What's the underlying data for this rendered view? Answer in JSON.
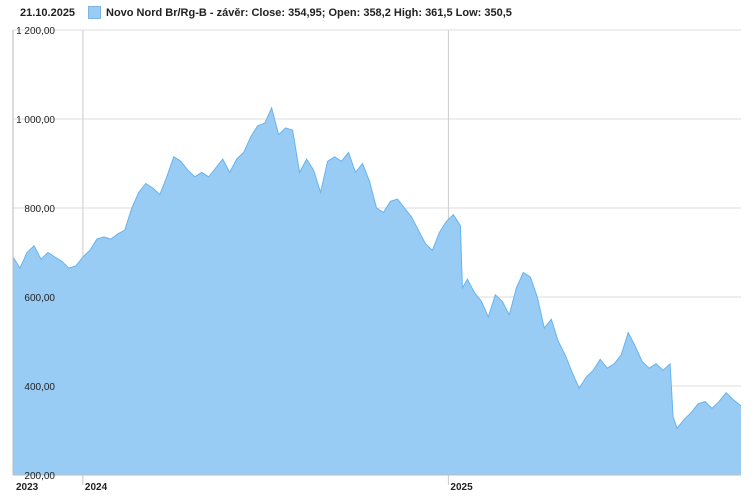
{
  "header": {
    "date": "21.10.2025",
    "legend": "Novo Nord Br/Rg-B - závěr: Close: 354,95; Open: 358,2 High: 361,5 Low: 350,5"
  },
  "colors": {
    "area_fill": "#99ccf5",
    "area_line": "#66b3ee",
    "grid": "#dddddd",
    "axis": "#bbbbbb"
  },
  "chart_data": {
    "type": "area",
    "title": "",
    "xlabel": "",
    "ylabel": "",
    "ylim": [
      200,
      1200
    ],
    "xlim": [
      "2023-10-23",
      "2025-10-21"
    ],
    "y_ticks": [
      200,
      400,
      600,
      800,
      1000,
      1200
    ],
    "y_tick_labels": [
      "200,00",
      "400,00",
      "600,00",
      "800,00",
      "1 000,00",
      "1 200,00"
    ],
    "x_ticks": [
      {
        "date": "2023-10-23",
        "label": "2023"
      },
      {
        "date": "2024-01-01",
        "label": "2024"
      },
      {
        "date": "2025-01-01",
        "label": "2025"
      }
    ],
    "grid": true,
    "series": [
      {
        "name": "Novo Nord Br/Rg-B",
        "points": [
          [
            "2023-10-23",
            690
          ],
          [
            "2023-10-30",
            665
          ],
          [
            "2023-11-06",
            700
          ],
          [
            "2023-11-13",
            715
          ],
          [
            "2023-11-20",
            685
          ],
          [
            "2023-11-27",
            700
          ],
          [
            "2023-12-04",
            690
          ],
          [
            "2023-12-11",
            680
          ],
          [
            "2023-12-18",
            665
          ],
          [
            "2023-12-25",
            670
          ],
          [
            "2024-01-01",
            690
          ],
          [
            "2024-01-08",
            705
          ],
          [
            "2024-01-15",
            730
          ],
          [
            "2024-01-22",
            735
          ],
          [
            "2024-01-29",
            730
          ],
          [
            "2024-02-05",
            742
          ],
          [
            "2024-02-12",
            750
          ],
          [
            "2024-02-19",
            800
          ],
          [
            "2024-02-26",
            835
          ],
          [
            "2024-03-04",
            855
          ],
          [
            "2024-03-11",
            845
          ],
          [
            "2024-03-18",
            830
          ],
          [
            "2024-03-25",
            870
          ],
          [
            "2024-04-01",
            915
          ],
          [
            "2024-04-08",
            905
          ],
          [
            "2024-04-15",
            885
          ],
          [
            "2024-04-22",
            870
          ],
          [
            "2024-04-29",
            880
          ],
          [
            "2024-05-06",
            870
          ],
          [
            "2024-05-13",
            890
          ],
          [
            "2024-05-20",
            910
          ],
          [
            "2024-05-27",
            880
          ],
          [
            "2024-06-03",
            910
          ],
          [
            "2024-06-10",
            925
          ],
          [
            "2024-06-17",
            960
          ],
          [
            "2024-06-24",
            985
          ],
          [
            "2024-07-01",
            990
          ],
          [
            "2024-07-08",
            1025
          ],
          [
            "2024-07-15",
            965
          ],
          [
            "2024-07-22",
            980
          ],
          [
            "2024-07-29",
            975
          ],
          [
            "2024-08-05",
            880
          ],
          [
            "2024-08-12",
            910
          ],
          [
            "2024-08-19",
            885
          ],
          [
            "2024-08-26",
            835
          ],
          [
            "2024-09-02",
            905
          ],
          [
            "2024-09-09",
            915
          ],
          [
            "2024-09-16",
            905
          ],
          [
            "2024-09-23",
            925
          ],
          [
            "2024-09-30",
            880
          ],
          [
            "2024-10-07",
            900
          ],
          [
            "2024-10-14",
            860
          ],
          [
            "2024-10-21",
            800
          ],
          [
            "2024-10-28",
            790
          ],
          [
            "2024-11-04",
            815
          ],
          [
            "2024-11-11",
            820
          ],
          [
            "2024-11-18",
            800
          ],
          [
            "2024-11-25",
            780
          ],
          [
            "2024-12-02",
            750
          ],
          [
            "2024-12-09",
            720
          ],
          [
            "2024-12-16",
            705
          ],
          [
            "2024-12-23",
            745
          ],
          [
            "2024-12-30",
            770
          ],
          [
            "2025-01-06",
            785
          ],
          [
            "2025-01-13",
            760
          ],
          [
            "2025-01-15",
            620
          ],
          [
            "2025-01-20",
            640
          ],
          [
            "2025-01-27",
            610
          ],
          [
            "2025-02-03",
            590
          ],
          [
            "2025-02-10",
            555
          ],
          [
            "2025-02-17",
            605
          ],
          [
            "2025-02-24",
            590
          ],
          [
            "2025-03-03",
            560
          ],
          [
            "2025-03-10",
            620
          ],
          [
            "2025-03-17",
            655
          ],
          [
            "2025-03-24",
            645
          ],
          [
            "2025-03-31",
            600
          ],
          [
            "2025-04-07",
            530
          ],
          [
            "2025-04-14",
            550
          ],
          [
            "2025-04-21",
            500
          ],
          [
            "2025-04-28",
            470
          ],
          [
            "2025-05-05",
            430
          ],
          [
            "2025-05-12",
            395
          ],
          [
            "2025-05-19",
            420
          ],
          [
            "2025-05-26",
            435
          ],
          [
            "2025-06-02",
            460
          ],
          [
            "2025-06-09",
            440
          ],
          [
            "2025-06-16",
            450
          ],
          [
            "2025-06-23",
            470
          ],
          [
            "2025-06-30",
            520
          ],
          [
            "2025-07-07",
            490
          ],
          [
            "2025-07-14",
            455
          ],
          [
            "2025-07-21",
            440
          ],
          [
            "2025-07-28",
            450
          ],
          [
            "2025-08-04",
            435
          ],
          [
            "2025-08-11",
            450
          ],
          [
            "2025-08-14",
            330
          ],
          [
            "2025-08-18",
            305
          ],
          [
            "2025-08-25",
            325
          ],
          [
            "2025-09-01",
            340
          ],
          [
            "2025-09-08",
            360
          ],
          [
            "2025-09-15",
            365
          ],
          [
            "2025-09-22",
            350
          ],
          [
            "2025-09-29",
            365
          ],
          [
            "2025-10-06",
            385
          ],
          [
            "2025-10-13",
            370
          ],
          [
            "2025-10-21",
            355
          ]
        ]
      }
    ]
  }
}
